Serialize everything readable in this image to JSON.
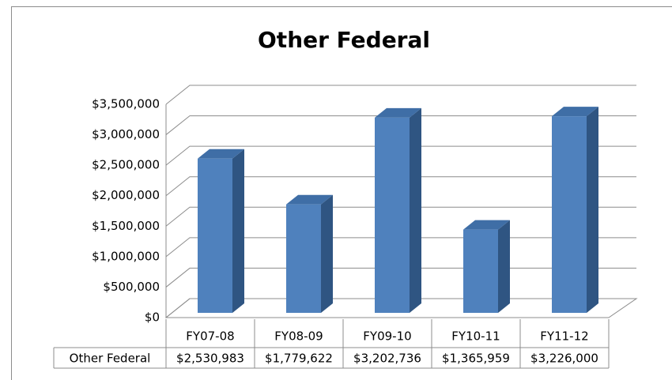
{
  "chart_data": {
    "type": "bar3d",
    "title": "Other Federal",
    "categories": [
      "FY07-08",
      "FY08-09",
      "FY09-10",
      "FY10-11",
      "FY11-12"
    ],
    "series": [
      {
        "name": "Other Federal",
        "color": "#4f81bd",
        "values": [
          2530983,
          1779622,
          3202736,
          1365959,
          3226000
        ],
        "value_labels": [
          "$2,530,983",
          "$1,779,622",
          "$3,202,736",
          "$1,365,959",
          "$3,226,000"
        ]
      }
    ],
    "ylim": [
      0,
      3500000
    ],
    "yticks": [
      {
        "value": 0,
        "label": "$0"
      },
      {
        "value": 500000,
        "label": "$500,000"
      },
      {
        "value": 1000000,
        "label": "$1,000,000"
      },
      {
        "value": 1500000,
        "label": "$1,500,000"
      },
      {
        "value": 2000000,
        "label": "$2,000,000"
      },
      {
        "value": 2500000,
        "label": "$2,500,000"
      },
      {
        "value": 3000000,
        "label": "$3,000,000"
      },
      {
        "value": 3500000,
        "label": "$3,500,000"
      }
    ],
    "grid": true,
    "data_table": true
  }
}
